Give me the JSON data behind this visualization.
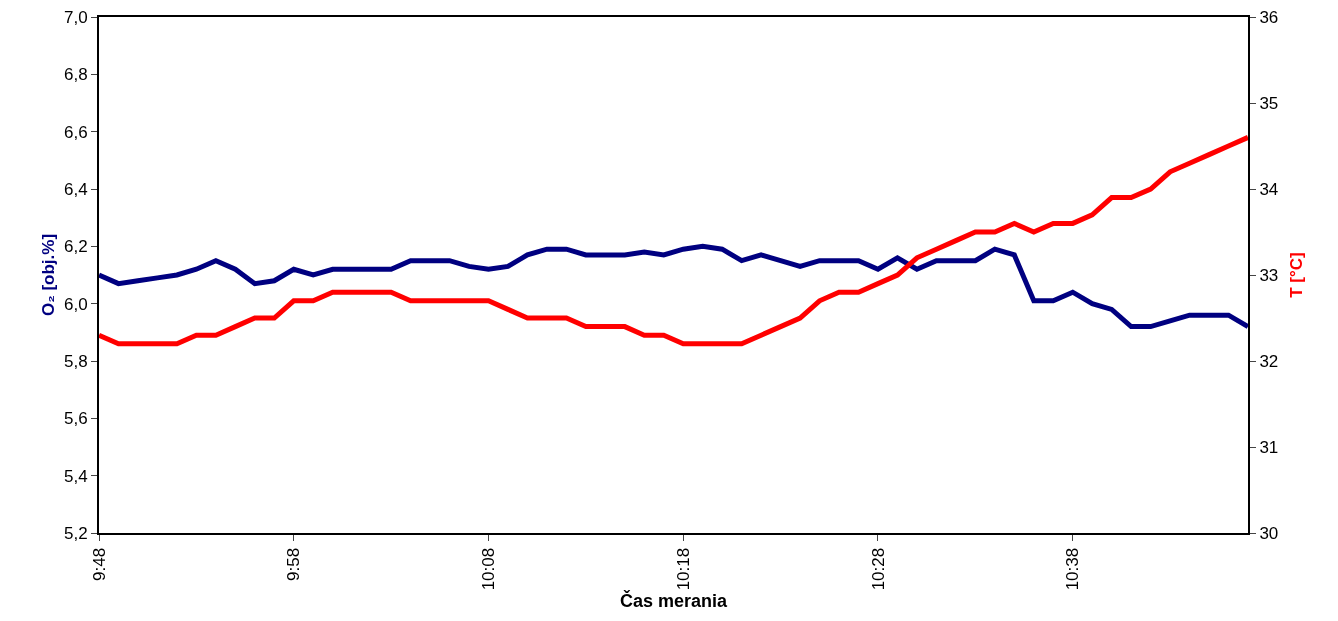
{
  "chart_data": {
    "type": "line",
    "xlabel": "Čas merania",
    "ylabel": "O₂ [obj.%]",
    "y2label": "T [°C]",
    "x": [
      9.8,
      9.816667,
      9.833333,
      9.85,
      9.866667,
      9.883333,
      9.9,
      9.916667,
      9.933333,
      9.95,
      9.966667,
      9.983333,
      10.0,
      10.016667,
      10.033333,
      10.05,
      10.066667,
      10.083333,
      10.1,
      10.116667,
      10.133333,
      10.15,
      10.166667,
      10.183333,
      10.2,
      10.216667,
      10.233333,
      10.25,
      10.266667,
      10.283333,
      10.3,
      10.316667,
      10.333333,
      10.35,
      10.366667,
      10.383333,
      10.4,
      10.416667,
      10.433333,
      10.45,
      10.466667,
      10.483333,
      10.5,
      10.516667,
      10.533333,
      10.55,
      10.566667,
      10.583333,
      10.6,
      10.616667,
      10.633333,
      10.65,
      10.666667,
      10.683333,
      10.7,
      10.716667,
      10.733333,
      10.75,
      10.766667,
      10.783333
    ],
    "series": [
      {
        "color": "#000080",
        "values": [
          6.1,
          6.07,
          6.08,
          6.09,
          6.1,
          6.12,
          6.15,
          6.12,
          6.07,
          6.08,
          6.12,
          6.1,
          6.12,
          6.12,
          6.12,
          6.12,
          6.15,
          6.15,
          6.15,
          6.13,
          6.12,
          6.13,
          6.17,
          6.19,
          6.19,
          6.17,
          6.17,
          6.17,
          6.18,
          6.17,
          6.19,
          6.2,
          6.19,
          6.15,
          6.17,
          6.15,
          6.13,
          6.15,
          6.15,
          6.15,
          6.12,
          6.16,
          6.12,
          6.15,
          6.15,
          6.15,
          6.19,
          6.17,
          6.01,
          6.01,
          6.04,
          6.0,
          5.98,
          5.92,
          5.92,
          5.94,
          5.96,
          5.96,
          5.96,
          5.92
        ]
      },
      {
        "color": "#ff0000",
        "axis": "y2",
        "values": [
          32.3,
          32.2,
          32.2,
          32.2,
          32.2,
          32.3,
          32.3,
          32.4,
          32.5,
          32.5,
          32.7,
          32.7,
          32.8,
          32.8,
          32.8,
          32.8,
          32.7,
          32.7,
          32.7,
          32.7,
          32.7,
          32.6,
          32.5,
          32.5,
          32.5,
          32.4,
          32.4,
          32.4,
          32.3,
          32.3,
          32.2,
          32.2,
          32.2,
          32.2,
          32.3,
          32.4,
          32.5,
          32.7,
          32.8,
          32.8,
          32.9,
          33.0,
          33.2,
          33.3,
          33.4,
          33.5,
          33.5,
          33.6,
          33.5,
          33.6,
          33.6,
          33.7,
          33.9,
          33.9,
          34.0,
          34.2,
          34.3,
          34.4,
          34.5,
          34.6
        ]
      }
    ],
    "xlim": [
      9.8,
      10.783333
    ],
    "xticks": [
      {
        "value": 9.8,
        "label": "9:48"
      },
      {
        "value": 9.966667,
        "label": "9:58"
      },
      {
        "value": 10.133333,
        "label": "10:08"
      },
      {
        "value": 10.3,
        "label": "10:18"
      },
      {
        "value": 10.466667,
        "label": "10:28"
      },
      {
        "value": 10.633333,
        "label": "10:38"
      }
    ],
    "ylim": [
      5.2,
      7.0
    ],
    "yticks": [
      {
        "value": 5.2,
        "label": "5,2"
      },
      {
        "value": 5.4,
        "label": "5,4"
      },
      {
        "value": 5.6,
        "label": "5,6"
      },
      {
        "value": 5.8,
        "label": "5,8"
      },
      {
        "value": 6.0,
        "label": "6,0"
      },
      {
        "value": 6.2,
        "label": "6,2"
      },
      {
        "value": 6.4,
        "label": "6,4"
      },
      {
        "value": 6.6,
        "label": "6,6"
      },
      {
        "value": 6.8,
        "label": "6,8"
      },
      {
        "value": 7.0,
        "label": "7,0"
      }
    ],
    "y2lim": [
      30,
      36
    ],
    "y2ticks": [
      30,
      31,
      32,
      33,
      34,
      35,
      36
    ],
    "grid": false,
    "marker": "none",
    "line_style": "solid"
  }
}
